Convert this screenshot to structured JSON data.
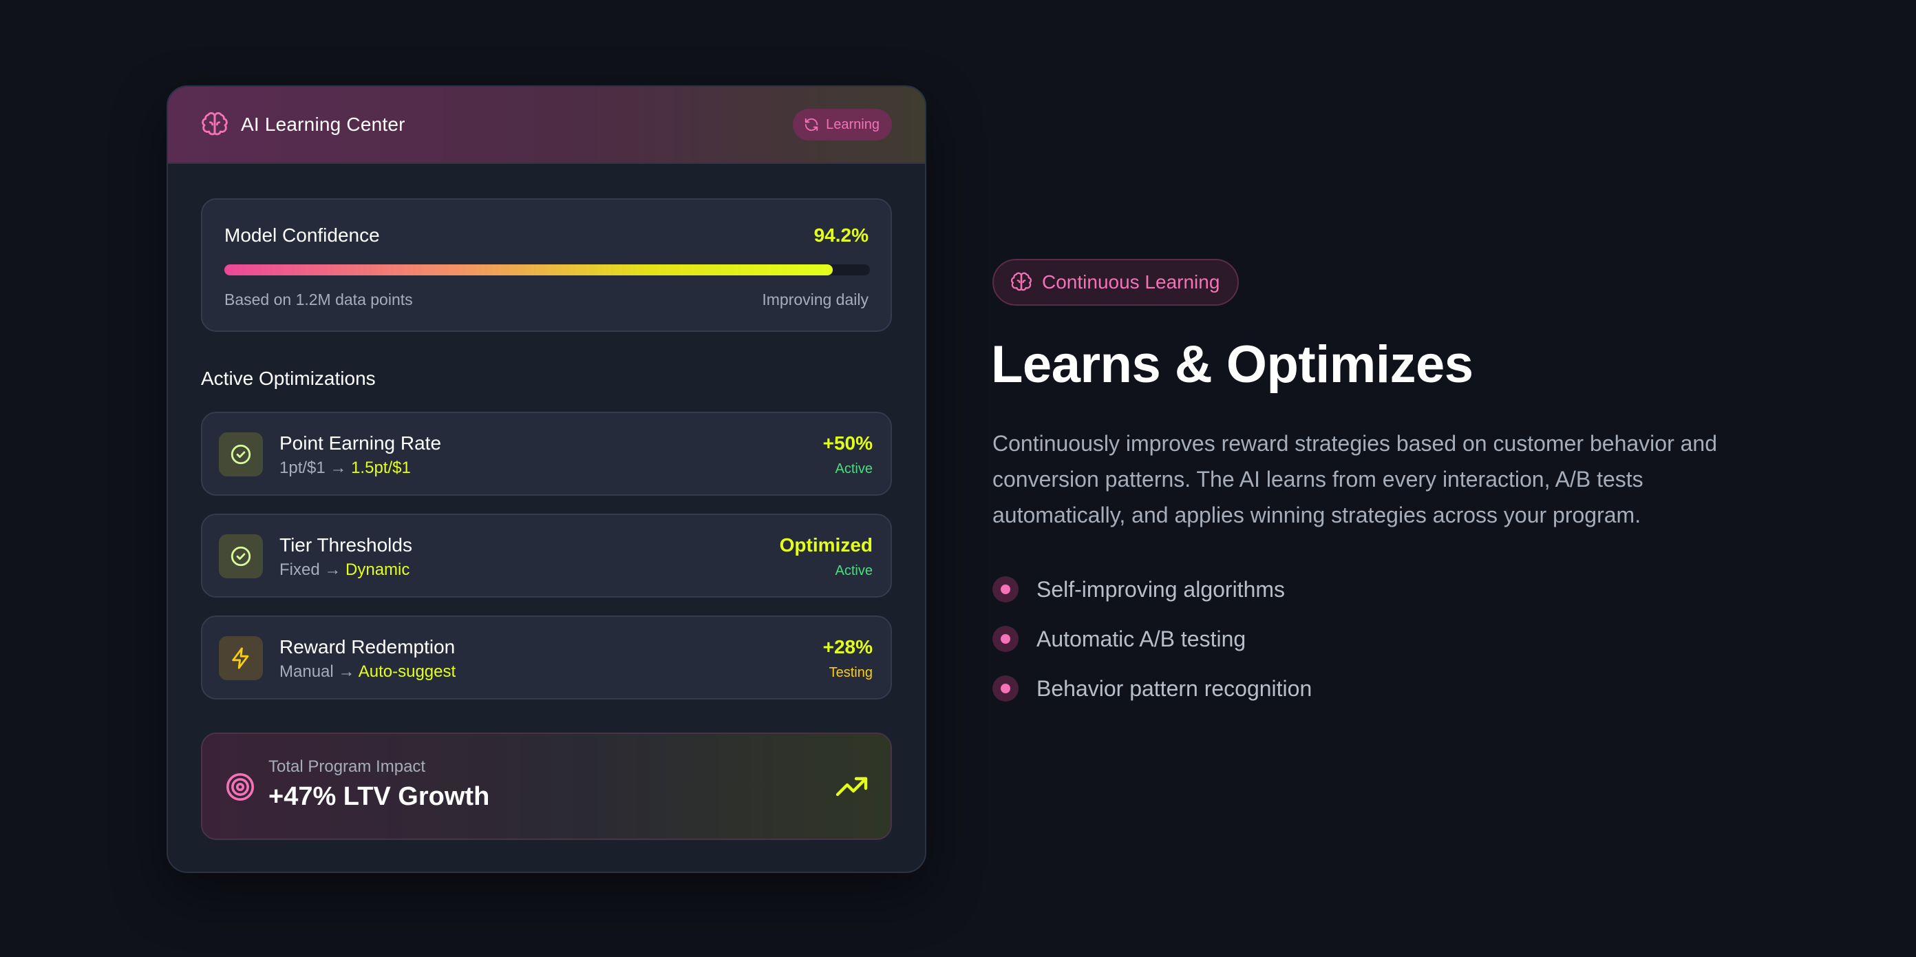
{
  "card": {
    "header_title": "AI Learning Center",
    "status_badge": "Learning",
    "confidence": {
      "label": "Model Confidence",
      "value_text": "94.2%",
      "fill_percent": 94.2,
      "left_note": "Based on 1.2M data points",
      "right_note": "Improving daily"
    },
    "section_title": "Active Optimizations",
    "optimizations": [
      {
        "title": "Point Earning Rate",
        "from": "1pt/$1",
        "arrow": "→",
        "to": "1.5pt/$1",
        "value": "+50%",
        "status": "Active",
        "icon": "check-circle-icon"
      },
      {
        "title": "Tier Thresholds",
        "from": "Fixed",
        "arrow": "→",
        "to": "Dynamic",
        "value": "Optimized",
        "status": "Active",
        "icon": "check-circle-icon"
      },
      {
        "title": "Reward Redemption",
        "from": "Manual",
        "arrow": "→",
        "to": "Auto-suggest",
        "value": "+28%",
        "status": "Testing",
        "icon": "lightning-icon"
      }
    ],
    "impact": {
      "label": "Total Program Impact",
      "value": "+47% LTV Growth"
    }
  },
  "feature": {
    "pill": "Continuous Learning",
    "headline": "Learns & Optimizes",
    "description": "Continuously improves reward strategies based on customer behavior and conversion patterns. The AI learns from every interaction, A/B tests automatically, and applies winning strategies across your program.",
    "bullets": [
      "Self-improving algorithms",
      "Automatic A/B testing",
      "Behavior pattern recognition"
    ]
  },
  "colors": {
    "accent_pink": "#f472b6",
    "accent_lime": "#e3ff1a",
    "status_active": "#4ade80",
    "status_testing": "#facc15",
    "background": "#0f121a"
  }
}
